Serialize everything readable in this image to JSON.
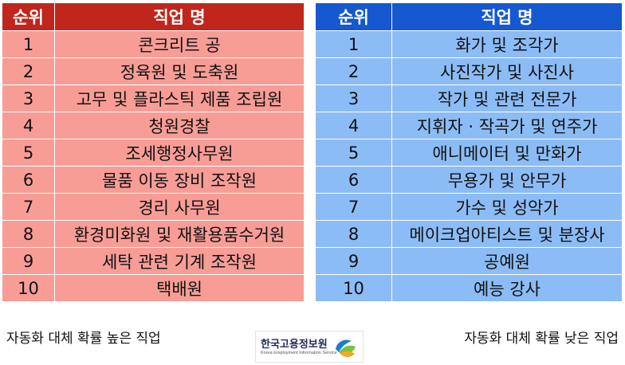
{
  "left_table": {
    "header": {
      "rank": "순위",
      "job": "직업 명"
    },
    "rows": [
      {
        "rank": "1",
        "job": "콘크리트 공"
      },
      {
        "rank": "2",
        "job": "정육원 및 도축원"
      },
      {
        "rank": "3",
        "job": "고무 및 플라스틱 제품 조립원"
      },
      {
        "rank": "4",
        "job": "청원경찰"
      },
      {
        "rank": "5",
        "job": "조세행정사무원"
      },
      {
        "rank": "6",
        "job": "물품 이동 장비 조작원"
      },
      {
        "rank": "7",
        "job": "경리 사무원"
      },
      {
        "rank": "8",
        "job": "환경미화원 및 재활용품수거원"
      },
      {
        "rank": "9",
        "job": "세탁 관련 기계 조작원"
      },
      {
        "rank": "10",
        "job": "택배원"
      }
    ],
    "caption": "자동화 대체 확률 높은 직업"
  },
  "right_table": {
    "header": {
      "rank": "순위",
      "job": "직업 명"
    },
    "rows": [
      {
        "rank": "1",
        "job": "화가 및 조각가"
      },
      {
        "rank": "2",
        "job": "사진작가 및 사진사"
      },
      {
        "rank": "3",
        "job": "작가 및 관련 전문가"
      },
      {
        "rank": "4",
        "job": "지휘자 · 작곡가 및 연주가"
      },
      {
        "rank": "5",
        "job": "애니메이터 및 만화가"
      },
      {
        "rank": "6",
        "job": "무용가 및 안무가"
      },
      {
        "rank": "7",
        "job": "가수 및 성악가"
      },
      {
        "rank": "8",
        "job": "메이크업아티스트 및 분장사"
      },
      {
        "rank": "9",
        "job": "공예원"
      },
      {
        "rank": "10",
        "job": "예능 강사"
      }
    ],
    "caption": "자동화 대체 확률 낮은 직업"
  },
  "logo": {
    "name": "한국고용정보원",
    "subtitle": "Korea Employment Information Service",
    "icon": "keis-leaf-logo"
  },
  "colors": {
    "left_header": "#c0261c",
    "left_cell": "#f79d96",
    "right_header": "#1558d0",
    "right_cell": "#8cbcf5"
  }
}
